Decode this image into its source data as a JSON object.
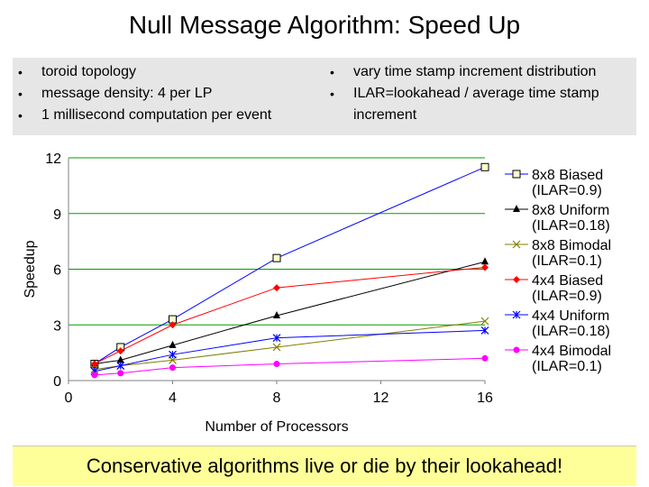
{
  "slide": {
    "title": "Null Message Algorithm: Speed Up",
    "bullets_left": [
      "toroid topology",
      "message density: 4 per LP",
      "1 millisecond computation per event"
    ],
    "bullets_right": [
      "vary time stamp increment distribution",
      "ILAR=lookahead / average time stamp increment"
    ],
    "banner": "Conservative algorithms live or die by their lookahead!",
    "bullet_glyph": "•"
  },
  "chart_data": {
    "type": "line",
    "xlabel": "Number of Processors",
    "ylabel": "Speedup",
    "xlim": [
      0,
      16
    ],
    "ylim": [
      0,
      12
    ],
    "xticks": [
      0,
      4,
      8,
      12,
      16
    ],
    "yticks": [
      0,
      3,
      6,
      9,
      12
    ],
    "grid": "horizontal",
    "legend_position": "right",
    "series": [
      {
        "name": "8x8 Biased",
        "sub": "(ILAR=0.9)",
        "color": "#0000ff",
        "marker": "square-open",
        "x": [
          1,
          2,
          4,
          8,
          16
        ],
        "values": [
          0.9,
          1.8,
          3.3,
          6.6,
          11.5
        ]
      },
      {
        "name": "8x8 Uniform",
        "sub": "(ILAR=0.18)",
        "color": "#000000",
        "marker": "triangle",
        "x": [
          1,
          2,
          4,
          8,
          16
        ],
        "values": [
          0.9,
          1.1,
          1.9,
          3.5,
          6.4
        ]
      },
      {
        "name": "8x8 Bimodal",
        "sub": "(ILAR=0.1)",
        "color": "#808000",
        "marker": "x",
        "x": [
          1,
          2,
          4,
          8,
          16
        ],
        "values": [
          0.6,
          0.8,
          1.1,
          1.8,
          3.2
        ]
      },
      {
        "name": "4x4 Biased",
        "sub": "(ILAR=0.9)",
        "color": "#ff0000",
        "marker": "diamond",
        "x": [
          1,
          2,
          4,
          8,
          16
        ],
        "values": [
          0.9,
          1.6,
          3.0,
          5.0,
          6.1
        ]
      },
      {
        "name": "4x4 Uniform",
        "sub": "(ILAR=0.18)",
        "color": "#0000ff",
        "marker": "star",
        "x": [
          1,
          2,
          4,
          8,
          16
        ],
        "values": [
          0.5,
          0.8,
          1.4,
          2.3,
          2.7
        ]
      },
      {
        "name": "4x4 Bimodal",
        "sub": "(ILAR=0.1)",
        "color": "#ff00ff",
        "marker": "circle",
        "x": [
          1,
          2,
          4,
          8,
          16
        ],
        "values": [
          0.3,
          0.4,
          0.7,
          0.9,
          1.2
        ]
      }
    ],
    "gridline_color": "#00a000",
    "axis_color": "#808080"
  }
}
